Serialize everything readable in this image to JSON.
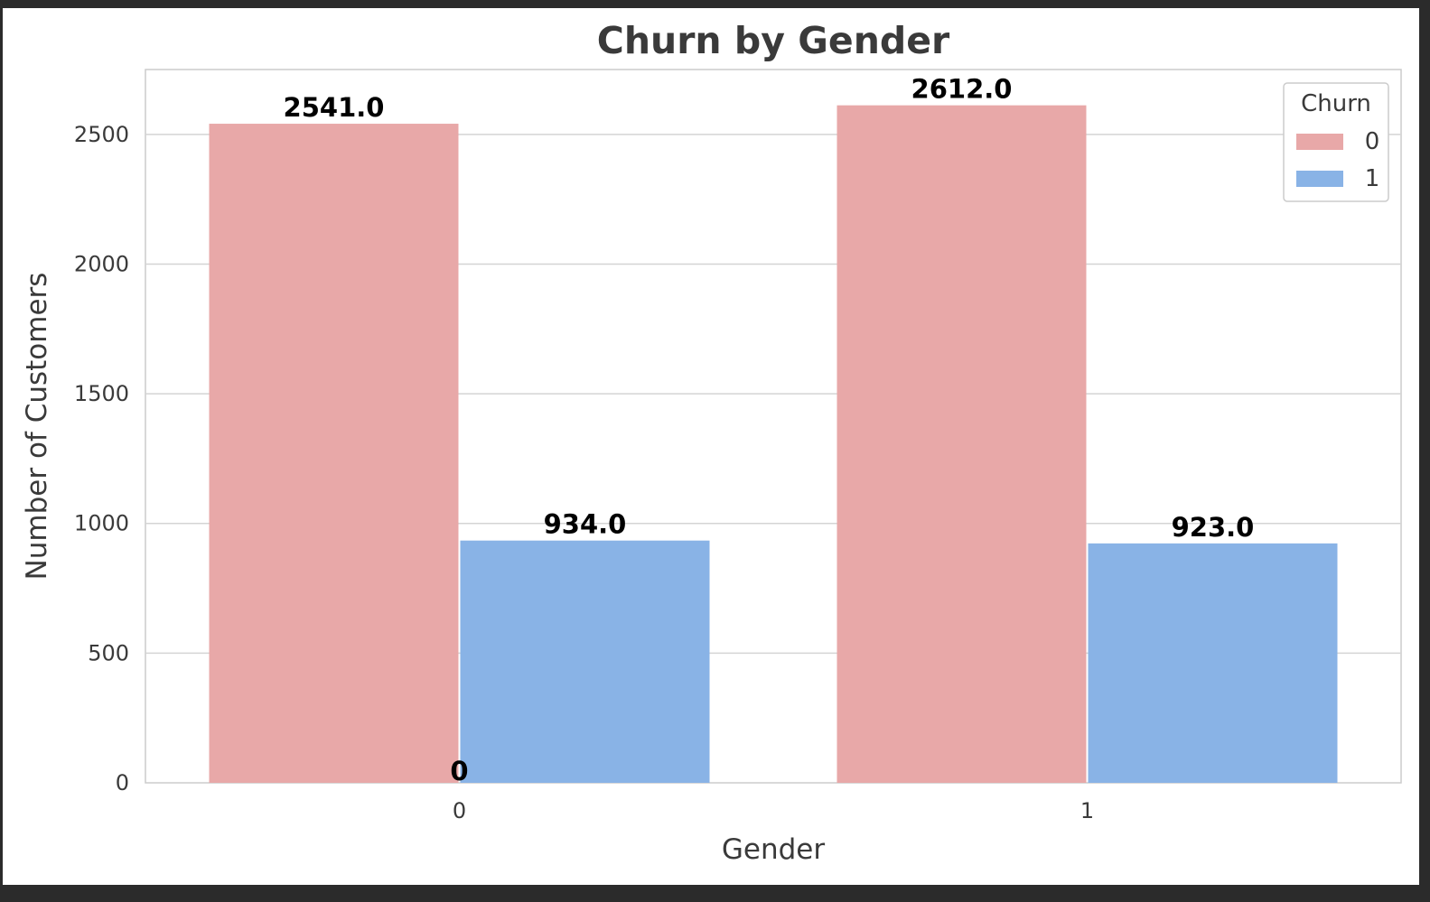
{
  "chart_data": {
    "type": "bar",
    "title": "Churn by Gender",
    "xlabel": "Gender",
    "ylabel": "Number of Customers",
    "categories": [
      "0",
      "1"
    ],
    "series": [
      {
        "name": "0",
        "values": [
          2541,
          2612
        ],
        "labels": [
          "2541.0",
          "2612.0"
        ],
        "color": "#e8a8a8"
      },
      {
        "name": "1",
        "values": [
          934,
          923
        ],
        "labels": [
          "934.0",
          "923.0"
        ],
        "color": "#89b3e6"
      }
    ],
    "extra_annotation": "0",
    "ylim": [
      0,
      2750
    ],
    "yticks": [
      0,
      500,
      1000,
      1500,
      2000,
      2500
    ],
    "grid": true,
    "legend": {
      "title": "Churn",
      "placement": "top-right"
    },
    "colors": {
      "grid": "#d4d4d4",
      "spine": "#cccccc",
      "text": "#3a3a3a"
    }
  }
}
